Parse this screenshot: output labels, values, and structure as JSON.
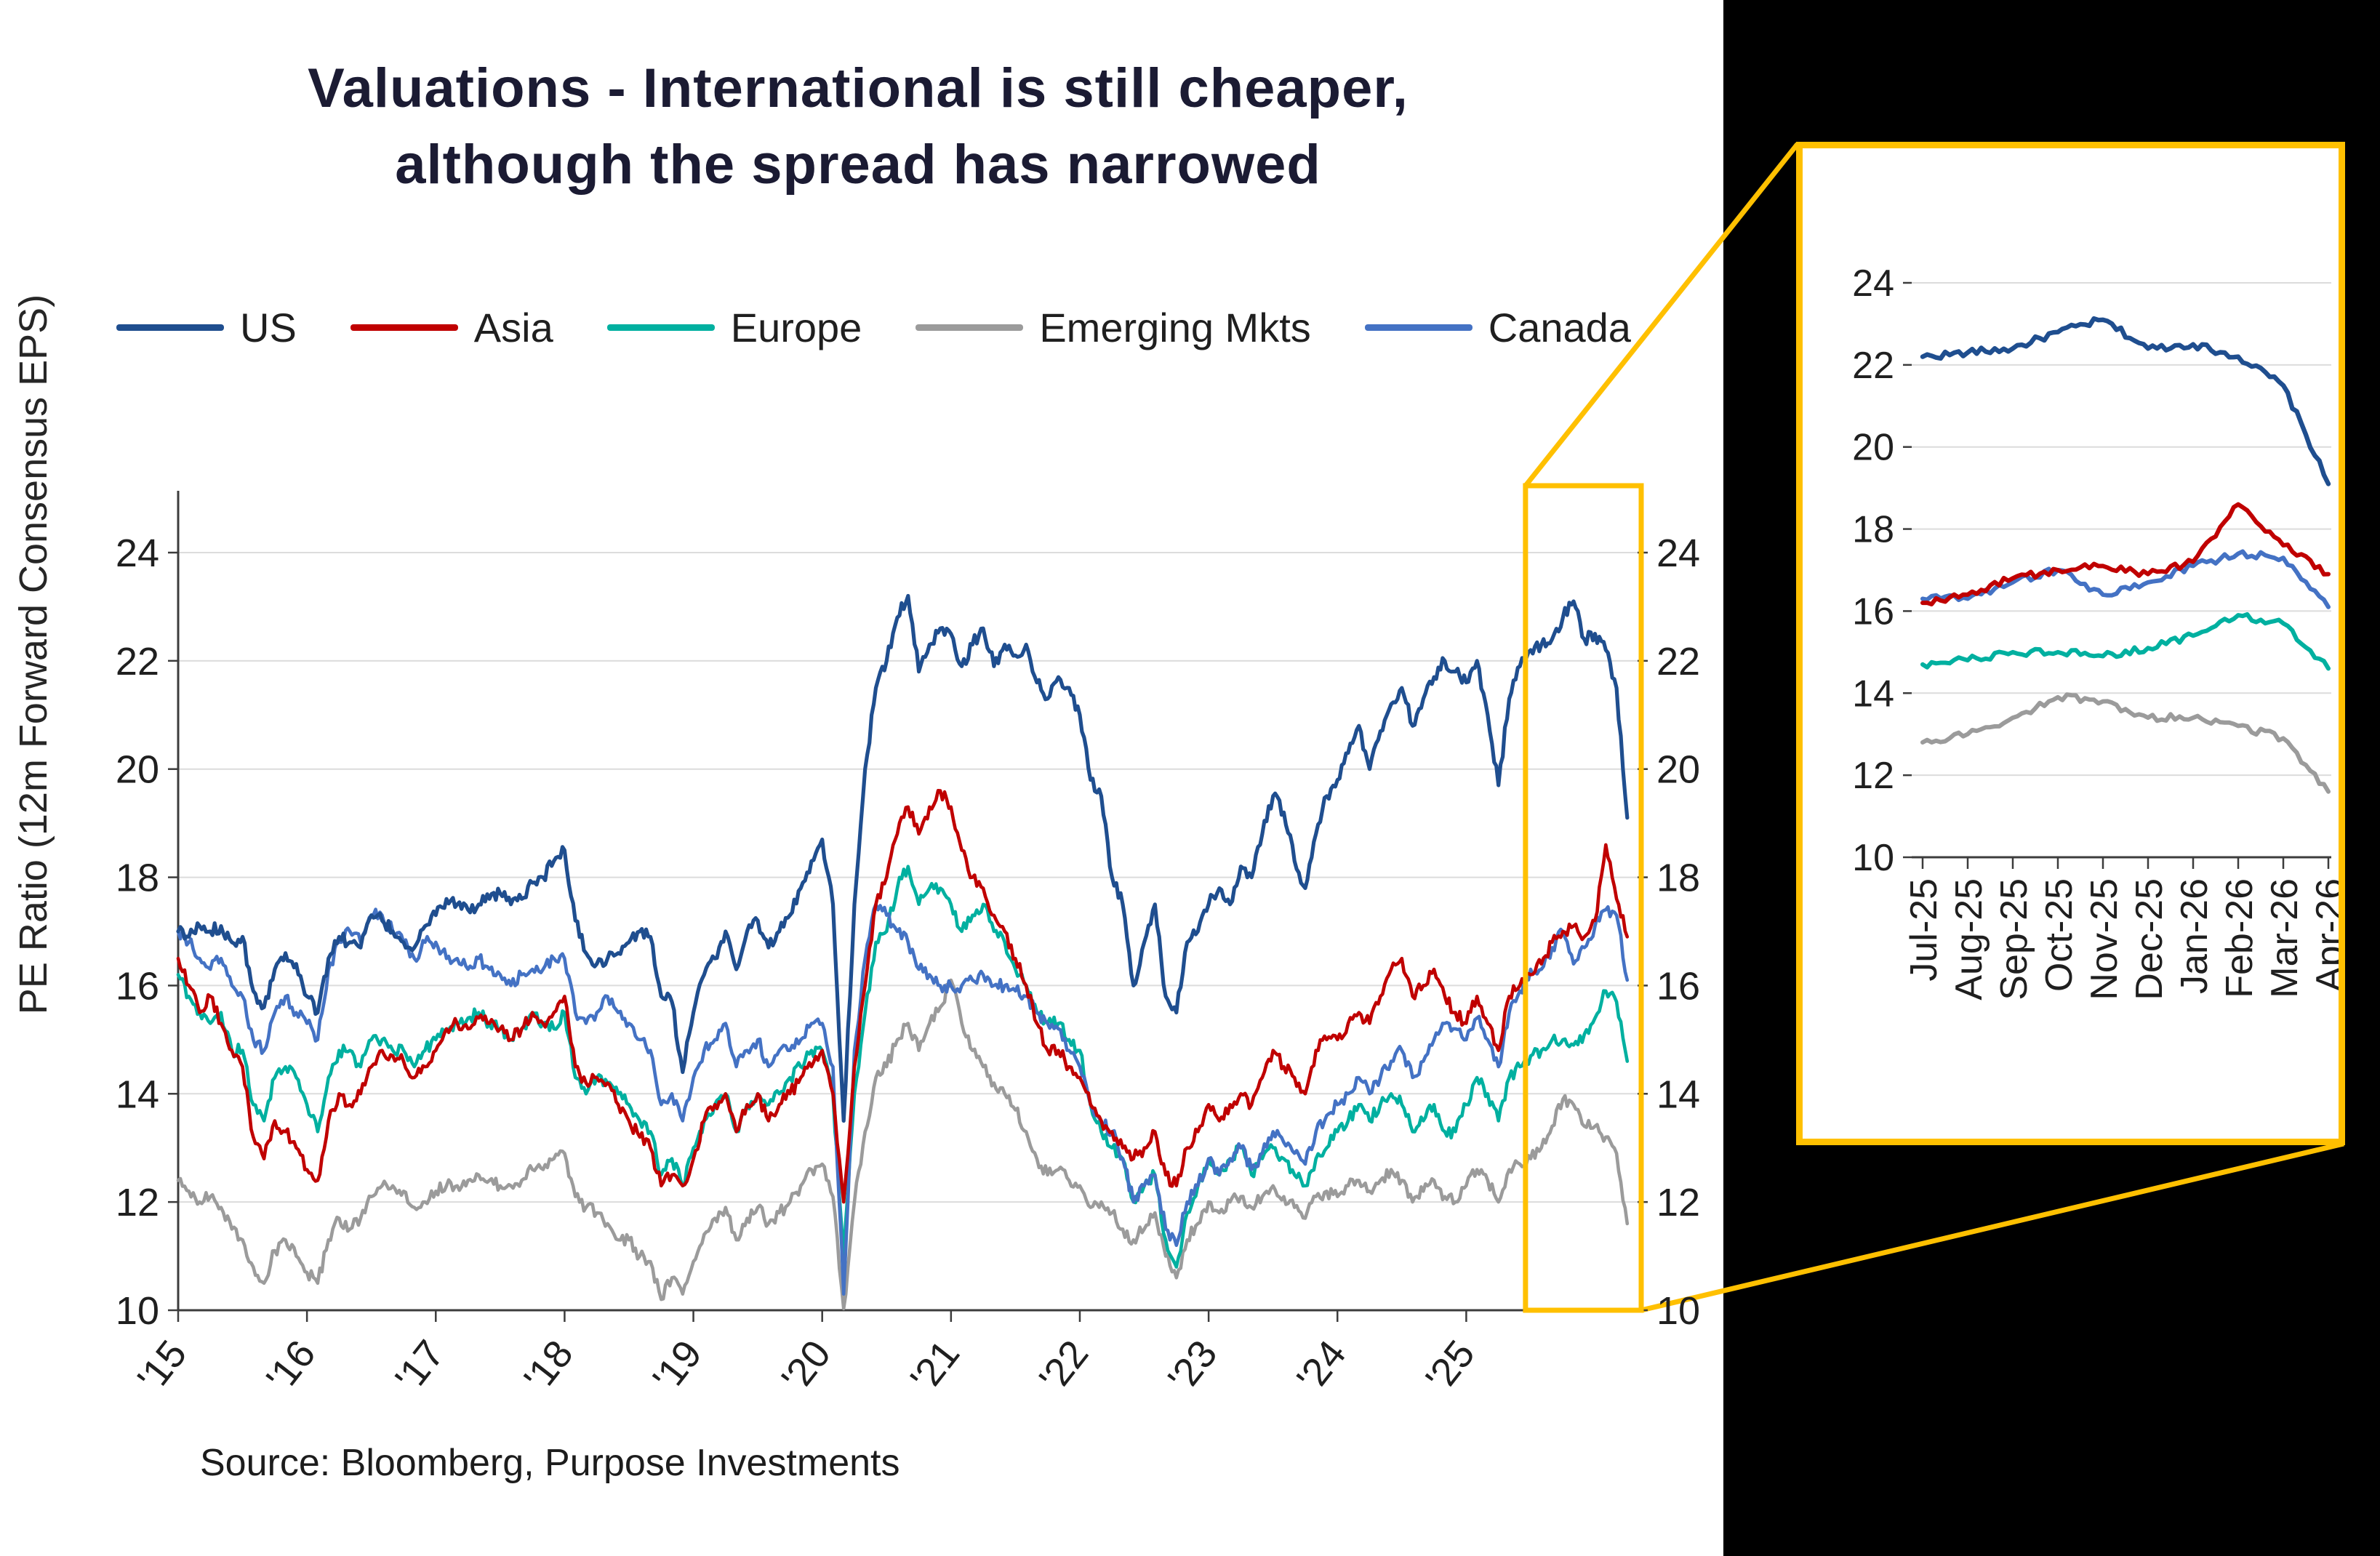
{
  "chart_data": {
    "type": "line",
    "title": "Valuations - International is still cheaper, although the spread has narrowed",
    "title_lines": [
      "Valuations - International is still cheaper,",
      "although the spread has narrowed"
    ],
    "ylabel": "PE Ratio  (12m Forward Consensus EPS)",
    "source": "Source: Bloomberg, Purpose Investments",
    "legend_position": "top",
    "grid": true,
    "ylim": [
      10,
      24
    ],
    "y_ticks": [
      10,
      12,
      14,
      16,
      18,
      20,
      22,
      24
    ],
    "x_start_year": 2015.0,
    "x_end_year": 2026.33,
    "x_step_years": 0.0833333,
    "x_tick_years": [
      2015,
      2016,
      2017,
      2018,
      2019,
      2020,
      2021,
      2022,
      2023,
      2024,
      2025
    ],
    "x_tick_labels": [
      "'15",
      "'16",
      "'17",
      "'18",
      "'19",
      "'20",
      "'21",
      "'22",
      "'23",
      "'24",
      "'25"
    ],
    "highlight_box": {
      "x0_year": 2025.46,
      "x1_year": 2026.36,
      "color": "#FFC000"
    },
    "series": [
      {
        "name": "US",
        "color": "#1F4E8F",
        "values": [
          17.0,
          16.9,
          17.1,
          17.0,
          17.1,
          16.8,
          16.9,
          15.9,
          15.6,
          16.3,
          16.6,
          16.4,
          15.8,
          15.5,
          16.5,
          16.9,
          16.8,
          16.7,
          17.3,
          17.2,
          17.0,
          16.8,
          16.7,
          17.1,
          17.3,
          17.6,
          17.5,
          17.4,
          17.5,
          17.6,
          17.7,
          17.5,
          17.6,
          17.9,
          18.0,
          18.3,
          18.5,
          17.2,
          16.6,
          16.4,
          16.5,
          16.6,
          16.8,
          17.0,
          16.9,
          15.8,
          15.7,
          14.4,
          15.5,
          16.2,
          16.5,
          17.0,
          16.3,
          17.0,
          17.2,
          16.7,
          17.0,
          17.3,
          17.8,
          18.3,
          18.7,
          17.5,
          13.5,
          17.5,
          20.0,
          21.5,
          22.0,
          22.8,
          23.2,
          21.8,
          22.3,
          22.6,
          22.5,
          21.9,
          22.3,
          22.6,
          21.9,
          22.3,
          22.1,
          22.3,
          21.6,
          21.3,
          21.7,
          21.5,
          21.0,
          19.8,
          19.5,
          18.0,
          17.5,
          16.0,
          16.8,
          17.5,
          15.8,
          15.5,
          16.8,
          17.0,
          17.5,
          17.8,
          17.5,
          18.2,
          18.0,
          18.8,
          19.5,
          19.2,
          18.3,
          17.8,
          18.8,
          19.5,
          19.8,
          20.3,
          20.8,
          20.0,
          20.7,
          21.2,
          21.5,
          20.8,
          21.3,
          21.7,
          22.0,
          21.8,
          21.6,
          22.0,
          21.0,
          19.7,
          21.3,
          21.9,
          22.2,
          22.3,
          22.4,
          22.8,
          23.1,
          22.4,
          22.5,
          22.2,
          21.5,
          19.1
        ]
      },
      {
        "name": "Asia",
        "color": "#C00000",
        "values": [
          16.5,
          16.0,
          15.5,
          15.8,
          15.3,
          14.8,
          14.5,
          13.2,
          12.8,
          13.5,
          13.3,
          13.0,
          12.6,
          12.4,
          13.5,
          14.0,
          13.8,
          14.0,
          14.5,
          14.8,
          14.7,
          14.6,
          14.3,
          14.5,
          14.8,
          15.2,
          15.3,
          15.2,
          15.4,
          15.3,
          15.2,
          15.0,
          15.2,
          15.5,
          15.3,
          15.5,
          15.8,
          14.5,
          14.2,
          14.3,
          14.2,
          13.8,
          13.5,
          13.2,
          13.0,
          12.3,
          12.5,
          12.3,
          12.8,
          13.5,
          13.8,
          14.0,
          13.3,
          13.8,
          14.0,
          13.5,
          13.8,
          14.0,
          14.3,
          14.5,
          14.8,
          14.0,
          12.0,
          14.5,
          16.0,
          17.5,
          18.0,
          18.8,
          19.3,
          18.8,
          19.3,
          19.6,
          19.3,
          18.5,
          18.0,
          17.8,
          17.3,
          17.0,
          16.5,
          16.0,
          15.3,
          14.8,
          14.8,
          14.5,
          14.3,
          13.8,
          13.5,
          13.3,
          13.0,
          12.8,
          13.0,
          13.3,
          12.5,
          12.3,
          13.0,
          13.3,
          13.8,
          13.5,
          13.8,
          14.0,
          13.8,
          14.3,
          14.8,
          14.5,
          14.3,
          14.0,
          14.8,
          15.0,
          15.0,
          15.3,
          15.5,
          15.3,
          15.8,
          16.3,
          16.5,
          15.8,
          16.0,
          16.3,
          15.8,
          15.5,
          15.3,
          15.8,
          15.3,
          14.8,
          15.8,
          16.0,
          16.2,
          16.4,
          16.8,
          17.0,
          17.1,
          16.9,
          17.2,
          18.6,
          17.6,
          16.9
        ]
      },
      {
        "name": "Europe",
        "color": "#00B0A0",
        "values": [
          16.2,
          15.8,
          15.5,
          15.3,
          15.5,
          14.8,
          14.8,
          13.8,
          13.5,
          14.3,
          14.5,
          14.3,
          13.8,
          13.3,
          14.3,
          14.8,
          14.8,
          14.5,
          15.0,
          15.0,
          14.8,
          14.8,
          14.5,
          14.8,
          15.0,
          15.2,
          15.3,
          15.4,
          15.5,
          15.3,
          15.2,
          15.0,
          15.2,
          15.5,
          15.3,
          15.2,
          15.5,
          14.3,
          14.0,
          14.3,
          14.2,
          14.0,
          13.8,
          13.5,
          13.3,
          12.5,
          12.8,
          12.3,
          13.0,
          13.5,
          13.8,
          14.0,
          13.3,
          13.8,
          14.0,
          13.8,
          14.0,
          14.3,
          14.5,
          14.8,
          14.8,
          14.0,
          11.0,
          14.0,
          15.5,
          16.8,
          17.0,
          17.8,
          18.2,
          17.5,
          17.8,
          17.8,
          17.5,
          17.0,
          17.3,
          17.5,
          17.0,
          16.8,
          16.3,
          16.0,
          15.5,
          15.3,
          15.3,
          15.0,
          14.8,
          13.8,
          13.3,
          13.0,
          12.8,
          12.0,
          12.3,
          12.5,
          11.3,
          10.8,
          11.8,
          12.3,
          12.8,
          12.5,
          12.8,
          13.0,
          12.5,
          12.8,
          13.0,
          12.8,
          12.5,
          12.3,
          12.8,
          13.0,
          13.3,
          13.5,
          13.8,
          13.5,
          13.8,
          14.0,
          13.8,
          13.3,
          13.5,
          13.8,
          13.3,
          13.3,
          13.8,
          14.3,
          14.0,
          13.5,
          14.3,
          14.5,
          14.7,
          14.8,
          15.0,
          15.0,
          14.9,
          15.1,
          15.4,
          15.9,
          15.7,
          14.6
        ]
      },
      {
        "name": "Emerging Mkts",
        "color": "#9B9B9B",
        "values": [
          12.4,
          12.2,
          12.0,
          12.1,
          11.9,
          11.5,
          11.3,
          10.8,
          10.5,
          11.1,
          11.3,
          11.0,
          10.7,
          10.5,
          11.3,
          11.7,
          11.5,
          11.7,
          12.1,
          12.3,
          12.3,
          12.2,
          11.9,
          12.0,
          12.2,
          12.3,
          12.3,
          12.4,
          12.5,
          12.4,
          12.3,
          12.3,
          12.4,
          12.6,
          12.6,
          12.8,
          12.9,
          12.1,
          11.9,
          11.8,
          11.6,
          11.3,
          11.3,
          11.0,
          10.9,
          10.2,
          10.6,
          10.3,
          10.9,
          11.4,
          11.7,
          11.9,
          11.3,
          11.7,
          11.9,
          11.6,
          11.8,
          12.0,
          12.3,
          12.6,
          12.7,
          12.1,
          10.0,
          12.0,
          13.3,
          14.3,
          14.5,
          15.0,
          15.3,
          14.8,
          15.3,
          15.6,
          16.1,
          15.3,
          14.8,
          14.5,
          14.2,
          14.0,
          13.7,
          13.3,
          12.8,
          12.5,
          12.6,
          12.4,
          12.3,
          11.9,
          12.0,
          11.8,
          11.5,
          11.3,
          11.5,
          11.8,
          11.0,
          10.6,
          11.3,
          11.6,
          12.0,
          11.8,
          12.0,
          12.1,
          11.9,
          12.1,
          12.3,
          12.1,
          11.9,
          11.7,
          12.1,
          12.2,
          12.1,
          12.3,
          12.4,
          12.2,
          12.4,
          12.6,
          12.4,
          12.0,
          12.2,
          12.4,
          12.1,
          12.0,
          12.3,
          12.6,
          12.4,
          12.0,
          12.6,
          12.7,
          12.8,
          13.0,
          13.4,
          13.9,
          13.8,
          13.4,
          13.4,
          13.2,
          12.9,
          11.6
        ]
      },
      {
        "name": "Canada",
        "color": "#4472C4",
        "values": [
          17.0,
          16.8,
          16.5,
          16.3,
          16.5,
          16.0,
          15.8,
          15.0,
          14.8,
          15.5,
          15.8,
          15.5,
          15.3,
          15.0,
          16.3,
          16.8,
          17.0,
          16.8,
          17.3,
          17.3,
          17.0,
          16.8,
          16.5,
          16.8,
          16.8,
          16.5,
          16.5,
          16.3,
          16.5,
          16.3,
          16.2,
          16.0,
          16.2,
          16.3,
          16.3,
          16.5,
          16.5,
          15.5,
          15.3,
          15.5,
          15.8,
          15.5,
          15.3,
          15.0,
          14.8,
          13.8,
          14.0,
          13.5,
          14.3,
          14.8,
          15.0,
          15.3,
          14.5,
          14.8,
          15.0,
          14.5,
          14.8,
          14.8,
          15.0,
          15.3,
          15.3,
          14.5,
          10.3,
          14.8,
          16.5,
          17.5,
          17.3,
          17.0,
          16.8,
          16.3,
          16.2,
          16.0,
          16.0,
          16.0,
          16.1,
          16.2,
          16.0,
          16.0,
          15.9,
          15.8,
          15.5,
          15.3,
          15.2,
          14.8,
          14.5,
          13.8,
          13.5,
          13.3,
          12.8,
          12.0,
          12.3,
          12.5,
          11.5,
          11.2,
          12.0,
          12.3,
          12.8,
          12.5,
          12.8,
          13.0,
          12.6,
          12.9,
          13.3,
          13.1,
          12.9,
          12.7,
          13.3,
          13.6,
          13.8,
          14.0,
          14.3,
          14.0,
          14.3,
          14.6,
          14.8,
          14.3,
          14.6,
          15.0,
          15.3,
          15.2,
          15.0,
          15.4,
          15.0,
          14.5,
          15.5,
          15.9,
          16.3,
          16.3,
          16.7,
          17.0,
          16.4,
          16.7,
          17.1,
          17.4,
          17.3,
          16.1
        ]
      }
    ],
    "inset": {
      "ylim": [
        10,
        24
      ],
      "y_ticks": [
        10,
        12,
        14,
        16,
        18,
        20,
        22,
        24
      ],
      "x_tick_labels": [
        "Jul-25",
        "Aug-25",
        "Sep-25",
        "Oct-25",
        "Nov-25",
        "Dec-25",
        "Jan-26",
        "Feb-26",
        "Mar-26",
        "Apr-26"
      ],
      "series": [
        {
          "name": "US",
          "color": "#1F4E8F",
          "values": [
            22.2,
            22.3,
            22.4,
            22.8,
            23.1,
            22.4,
            22.5,
            22.2,
            21.5,
            19.1
          ]
        },
        {
          "name": "Asia",
          "color": "#C00000",
          "values": [
            16.2,
            16.4,
            16.8,
            17.0,
            17.1,
            16.9,
            17.2,
            18.6,
            17.6,
            16.9
          ]
        },
        {
          "name": "Europe",
          "color": "#00B0A0",
          "values": [
            14.7,
            14.8,
            15.0,
            15.0,
            14.9,
            15.1,
            15.4,
            15.9,
            15.7,
            14.6
          ]
        },
        {
          "name": "Emerging Mkts",
          "color": "#9B9B9B",
          "values": [
            12.8,
            13.0,
            13.4,
            13.9,
            13.8,
            13.4,
            13.4,
            13.2,
            12.9,
            11.6
          ]
        },
        {
          "name": "Canada",
          "color": "#4472C4",
          "values": [
            16.3,
            16.3,
            16.7,
            17.0,
            16.4,
            16.7,
            17.1,
            17.4,
            17.3,
            16.1
          ]
        }
      ]
    }
  }
}
